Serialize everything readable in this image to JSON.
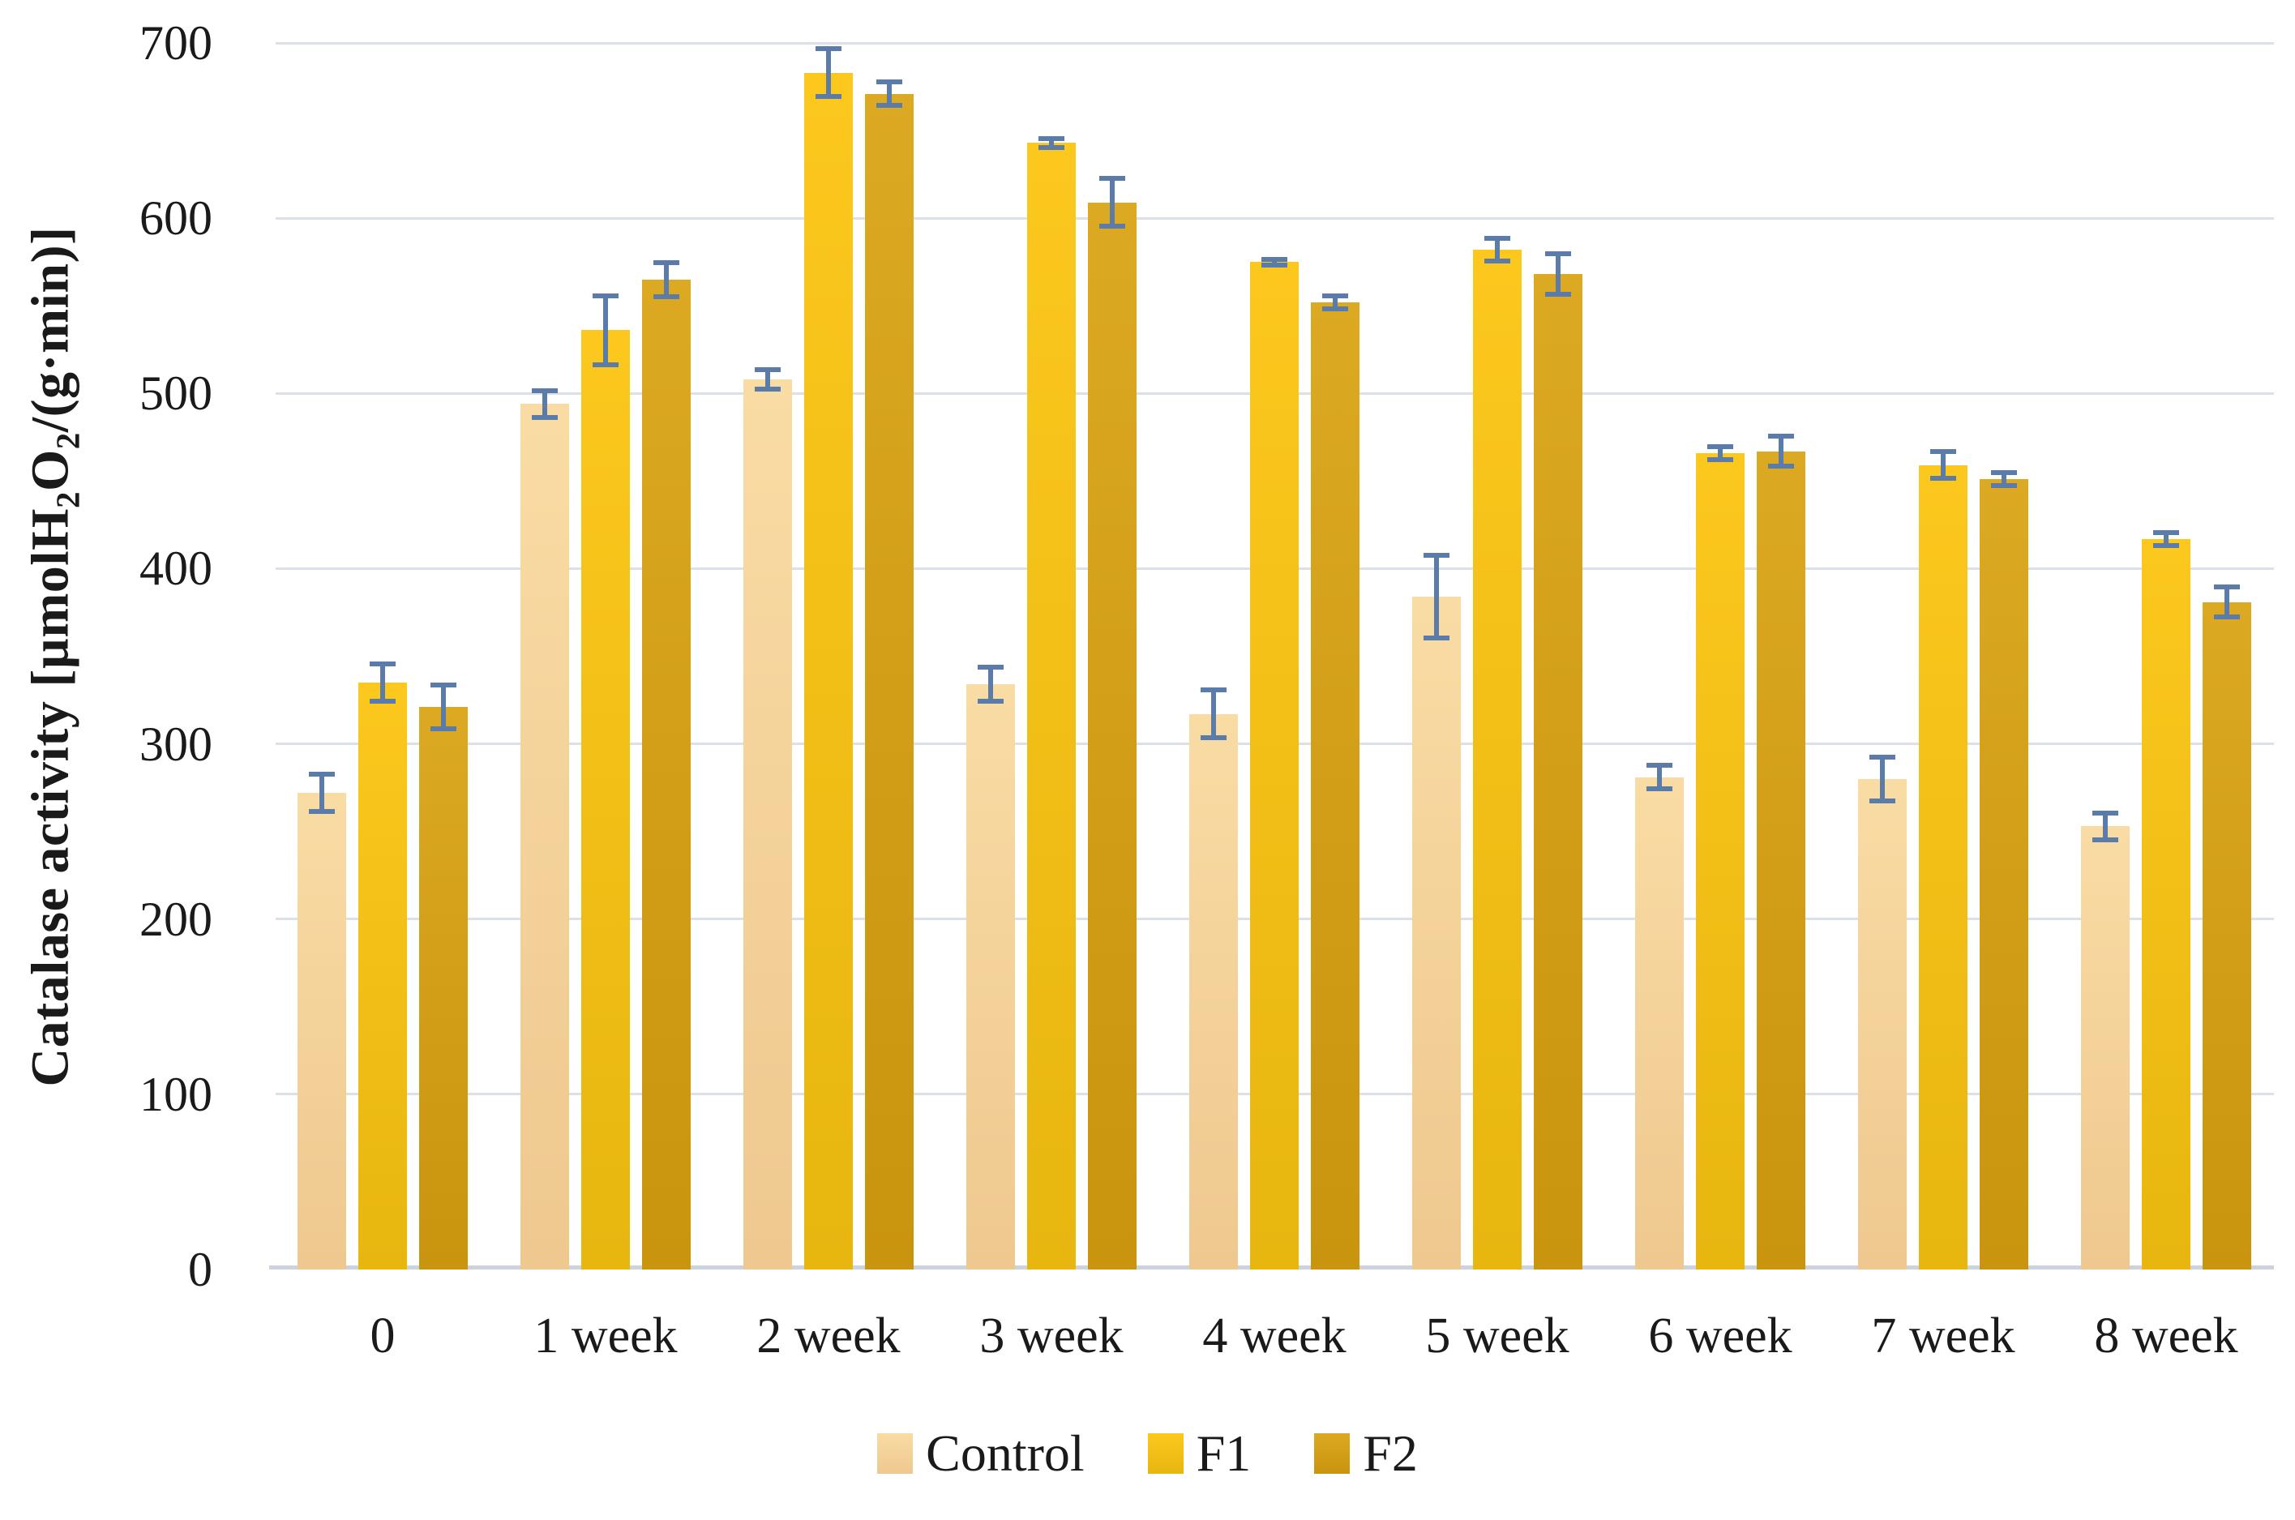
{
  "chart_data": {
    "type": "bar",
    "title": "",
    "ylabel_text": "Catalase activity [µmolH2O2/(g·min)]",
    "ylabel_segments": [
      {
        "t": "Catalase activity [µmolH"
      },
      {
        "t": "2",
        "sub": true
      },
      {
        "t": "O"
      },
      {
        "t": "2",
        "sub": true
      },
      {
        "t": "/(g·min)]"
      }
    ],
    "xlabel": "",
    "ylim": [
      0,
      700
    ],
    "yticks": [
      0,
      100,
      200,
      300,
      400,
      500,
      600,
      700
    ],
    "grid": true,
    "legend_position": "bottom",
    "categories": [
      "0",
      "1 week",
      "2 week",
      "3 week",
      "4 week",
      "5 week",
      "6 week",
      "7 week",
      "8 week"
    ],
    "series": [
      {
        "name": "Control",
        "color_top": "#F9DCA4",
        "color_bottom": "#EEC88F",
        "values": [
          272,
          494,
          508,
          334,
          317,
          384,
          281,
          280,
          253
        ],
        "errors": [
          12,
          9,
          7,
          11,
          15,
          25,
          8,
          14,
          9
        ]
      },
      {
        "name": "F1",
        "color_top": "#FCC81E",
        "color_bottom": "#E7B60F",
        "values": [
          335,
          536,
          683,
          643,
          575,
          582,
          466,
          459,
          417
        ],
        "errors": [
          12,
          21,
          15,
          4,
          3,
          8,
          5,
          9,
          5
        ]
      },
      {
        "name": "F2",
        "color_top": "#DCA922",
        "color_bottom": "#C9940E",
        "values": [
          321,
          565,
          671,
          609,
          552,
          568,
          467,
          451,
          381
        ],
        "errors": [
          14,
          11,
          8,
          15,
          5,
          13,
          10,
          5,
          10
        ]
      }
    ],
    "error_bar_color": "#5B7BA8",
    "gridline_color": "#DCE1E9",
    "axis_line_color": "#CCD3DC"
  },
  "layout_note": "grouped vertical bar chart with error bars"
}
